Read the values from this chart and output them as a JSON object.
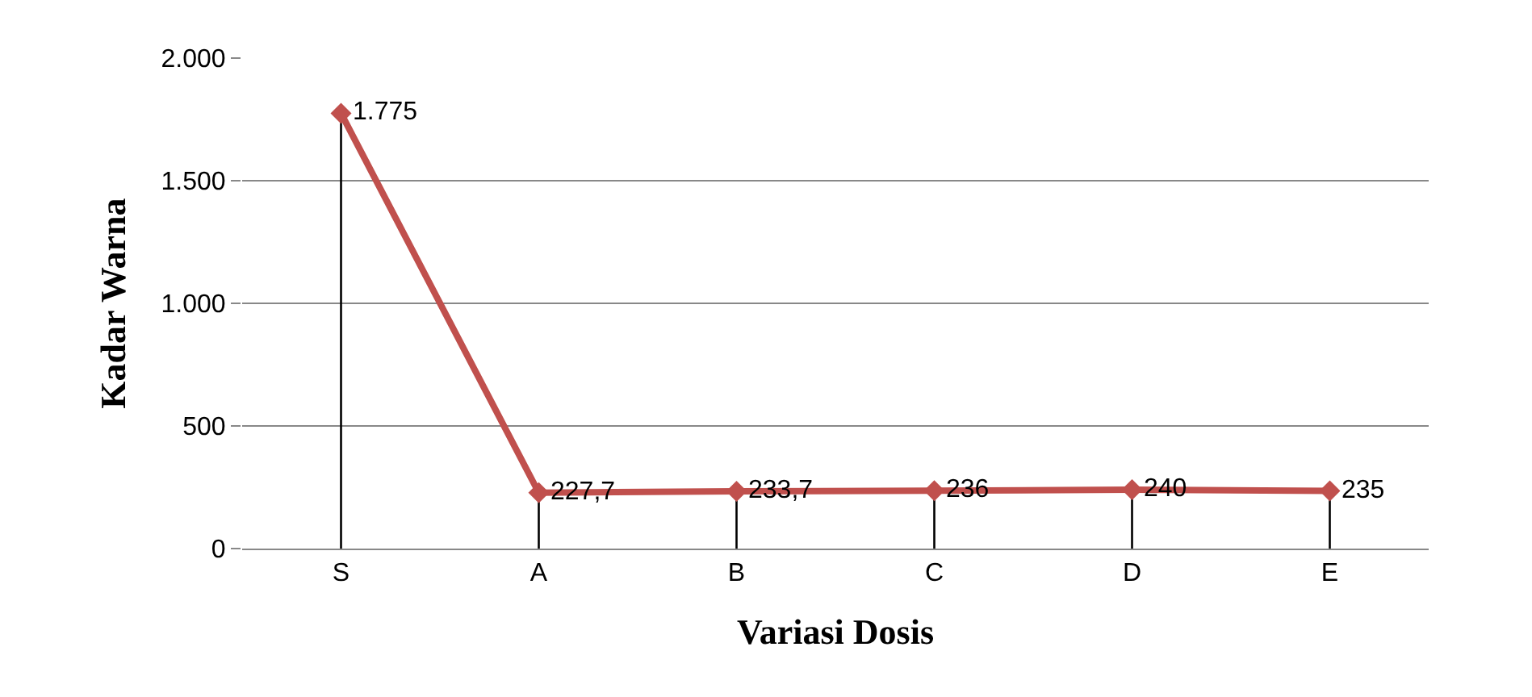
{
  "chart_data": {
    "type": "line",
    "xlabel": "Variasi Dosis",
    "ylabel": "Kadar Warna",
    "categories": [
      "S",
      "A",
      "B",
      "C",
      "D",
      "E"
    ],
    "series": [
      {
        "color": "#c0504d",
        "values": [
          1775,
          227.7,
          233.7,
          236,
          240,
          235
        ],
        "value_labels": [
          "1.775",
          "227,7",
          "233,7",
          "236",
          "240",
          "235"
        ],
        "errors": [
          [
            0,
            1775
          ],
          [
            0,
            227.7
          ],
          [
            0,
            233.7
          ],
          [
            0,
            236
          ],
          [
            0,
            240
          ],
          [
            0,
            235
          ]
        ]
      }
    ],
    "ylim": [
      0,
      2000
    ],
    "yticks": [
      0,
      500,
      {
        "value": 1000,
        "label": "1.000"
      },
      {
        "value": 1500,
        "label": "1.500"
      },
      {
        "value": 2000,
        "label": "2.000"
      }
    ],
    "grid": "y",
    "marker": "diamond",
    "line_style": "solid",
    "legend": false
  }
}
